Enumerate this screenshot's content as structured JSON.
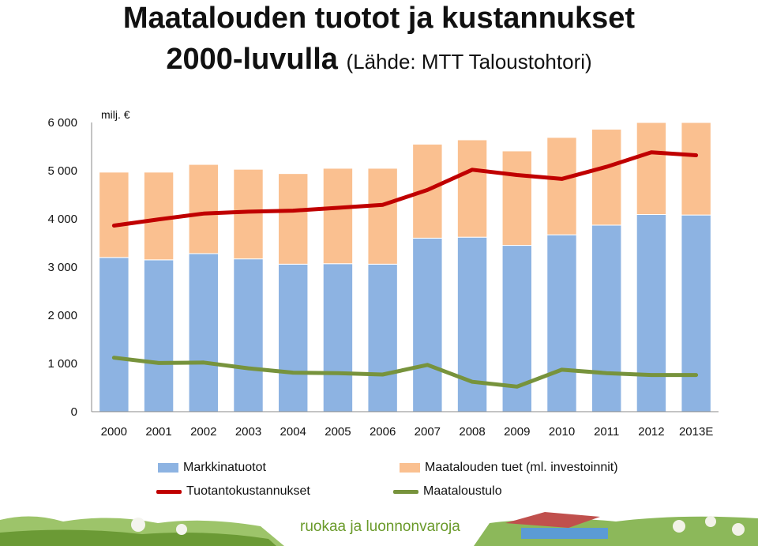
{
  "title": {
    "line1": "Maatalouden tuotot ja kustannukset",
    "line2_main": "2000-luvulla",
    "line2_source": "(Lähde: MTT Taloustohtori)"
  },
  "footer": {
    "slogan": "ruokaa ja luonnonvaroja"
  },
  "colors": {
    "markkinatuotot": "#8db3e2",
    "tuet": "#fac090",
    "tuotantokustannukset": "#c00000",
    "maataloustulo": "#77933c"
  },
  "chart_data": {
    "type": "bar",
    "stacked": true,
    "unit": "milj. €",
    "categories": [
      "2000",
      "2001",
      "2002",
      "2003",
      "2004",
      "2005",
      "2006",
      "2007",
      "2008",
      "2009",
      "2010",
      "2011",
      "2012",
      "2013E"
    ],
    "ylim": [
      0,
      6000
    ],
    "yticks": [
      0,
      1000,
      2000,
      3000,
      4000,
      5000,
      6000
    ],
    "ytick_labels": [
      "0",
      "1 000",
      "2 000",
      "3 000",
      "4 000",
      "5 000",
      "6 000"
    ],
    "grid": false,
    "legend_position": "bottom",
    "series": [
      {
        "name": "Markkinatuotot",
        "type": "bar",
        "values": [
          3200,
          3150,
          3280,
          3170,
          3060,
          3070,
          3060,
          3600,
          3620,
          3450,
          3670,
          3870,
          4090,
          4080
        ]
      },
      {
        "name": "Maatalouden tuet (ml. investoinnit)",
        "type": "bar",
        "values": [
          1770,
          1820,
          1850,
          1860,
          1880,
          1980,
          1990,
          1950,
          2020,
          1960,
          2020,
          1990,
          1910,
          1920
        ]
      },
      {
        "name": "Tuotantokustannukset",
        "type": "line",
        "values": [
          3860,
          3990,
          4110,
          4150,
          4170,
          4230,
          4290,
          4600,
          5020,
          4910,
          4830,
          5080,
          5380,
          5320
        ]
      },
      {
        "name": "Maataloustulo",
        "type": "line",
        "values": [
          1120,
          1010,
          1020,
          900,
          810,
          800,
          770,
          970,
          620,
          520,
          870,
          800,
          760,
          760
        ]
      }
    ]
  }
}
